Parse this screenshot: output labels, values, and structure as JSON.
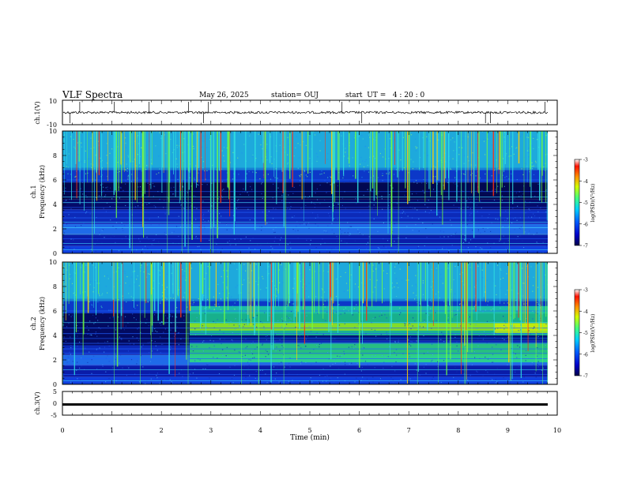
{
  "header": {
    "title": "VLF Spectra",
    "date": "May 26, 2025",
    "station": "station= OUJ",
    "start": "start  UT =   4 : 20 : 0"
  },
  "chart_data": [
    {
      "type": "line",
      "panel": "ch1-waveform",
      "ylabel": "ch.1(V)",
      "ylim": [
        -10,
        10
      ],
      "yticks": [
        "10",
        "-10"
      ],
      "baseline_value": 0,
      "spike_times_min": [
        0.15,
        0.35,
        1.05,
        1.75,
        2.55,
        2.85,
        2.95,
        5.65,
        6.05,
        8.55,
        8.65,
        9.75
      ]
    },
    {
      "type": "heatmap",
      "panel": "ch1-spectrogram",
      "ylabel_line1": "ch.1",
      "ylabel_line2": "Frequency (kHz)",
      "ylim": [
        0,
        10
      ],
      "yticks": [
        "0",
        "2",
        "4",
        "6",
        "8",
        "10"
      ],
      "colorbar": {
        "label": "log(PSD)(V²/Hz)",
        "range": [
          -7,
          -3
        ],
        "ticks": [
          "-3",
          "-4",
          "-5",
          "-6",
          "-7"
        ]
      }
    },
    {
      "type": "heatmap",
      "panel": "ch2-spectrogram",
      "ylabel_line1": "ch.2",
      "ylabel_line2": "Frequency (kHz)",
      "ylim": [
        0,
        10
      ],
      "yticks": [
        "0",
        "2",
        "4",
        "6",
        "8",
        "10"
      ],
      "colorbar": {
        "label": "log(PSD)(V²/Hz)",
        "range": [
          -7,
          -3
        ],
        "ticks": [
          "-3",
          "-4",
          "-5",
          "-6",
          "-7"
        ]
      }
    },
    {
      "type": "line",
      "panel": "ch3-waveform",
      "ylabel": "ch.3(V)",
      "ylim": [
        -5,
        5
      ],
      "yticks": [
        "5",
        "0",
        "-5"
      ],
      "baseline_value": -0.5
    }
  ],
  "xaxis": {
    "label": "Time (min)",
    "range": [
      0,
      10
    ],
    "ticks": [
      "0",
      "1",
      "2",
      "3",
      "4",
      "5",
      "6",
      "7",
      "8",
      "9",
      "10"
    ]
  }
}
